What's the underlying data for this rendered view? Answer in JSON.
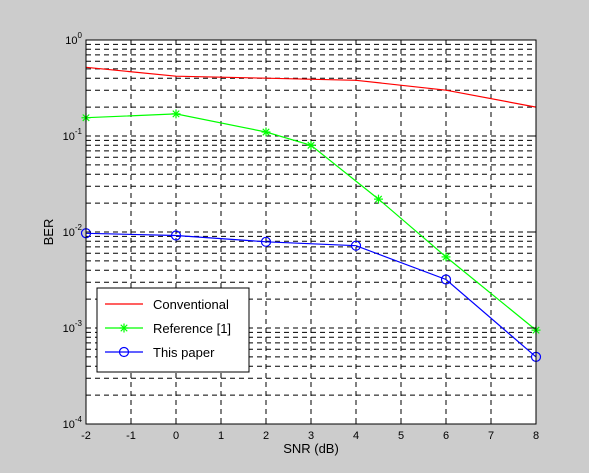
{
  "figure": {
    "background": "#cccccc",
    "axes_background": "#ffffff"
  },
  "chart_data": {
    "type": "line",
    "title": "",
    "xlabel": "SNR (dB)",
    "ylabel": "BER",
    "xlim": [
      -2,
      8
    ],
    "ylim": [
      0.0001,
      1
    ],
    "yscale": "log",
    "grid": true,
    "x_ticks": [
      "-2",
      "-1",
      "0",
      "1",
      "2",
      "3",
      "4",
      "5",
      "6",
      "7",
      "8"
    ],
    "y_ticks": [
      {
        "base": "10",
        "exp": "-4"
      },
      {
        "base": "10",
        "exp": "-3"
      },
      {
        "base": "10",
        "exp": "-2"
      },
      {
        "base": "10",
        "exp": "-1"
      },
      {
        "base": "10",
        "exp": "0"
      }
    ],
    "legend": {
      "position": "bottom-left"
    },
    "series": [
      {
        "name": "Conventional",
        "color": "#ff0000",
        "marker": "none",
        "x": [
          -2,
          0,
          2,
          4,
          6,
          8
        ],
        "y": [
          0.52,
          0.42,
          0.4,
          0.38,
          0.3,
          0.2
        ]
      },
      {
        "name": "Reference [1]",
        "color": "#00ff00",
        "marker": "star",
        "x": [
          -2,
          0,
          2,
          3,
          4.5,
          6,
          8
        ],
        "y": [
          0.155,
          0.17,
          0.11,
          0.08,
          0.022,
          0.0055,
          0.00095
        ]
      },
      {
        "name": "This paper",
        "color": "#0000ff",
        "marker": "circle",
        "x": [
          -2,
          0,
          2,
          4,
          6,
          8
        ],
        "y": [
          0.0097,
          0.0092,
          0.0079,
          0.0072,
          0.0032,
          0.0005
        ]
      }
    ]
  }
}
